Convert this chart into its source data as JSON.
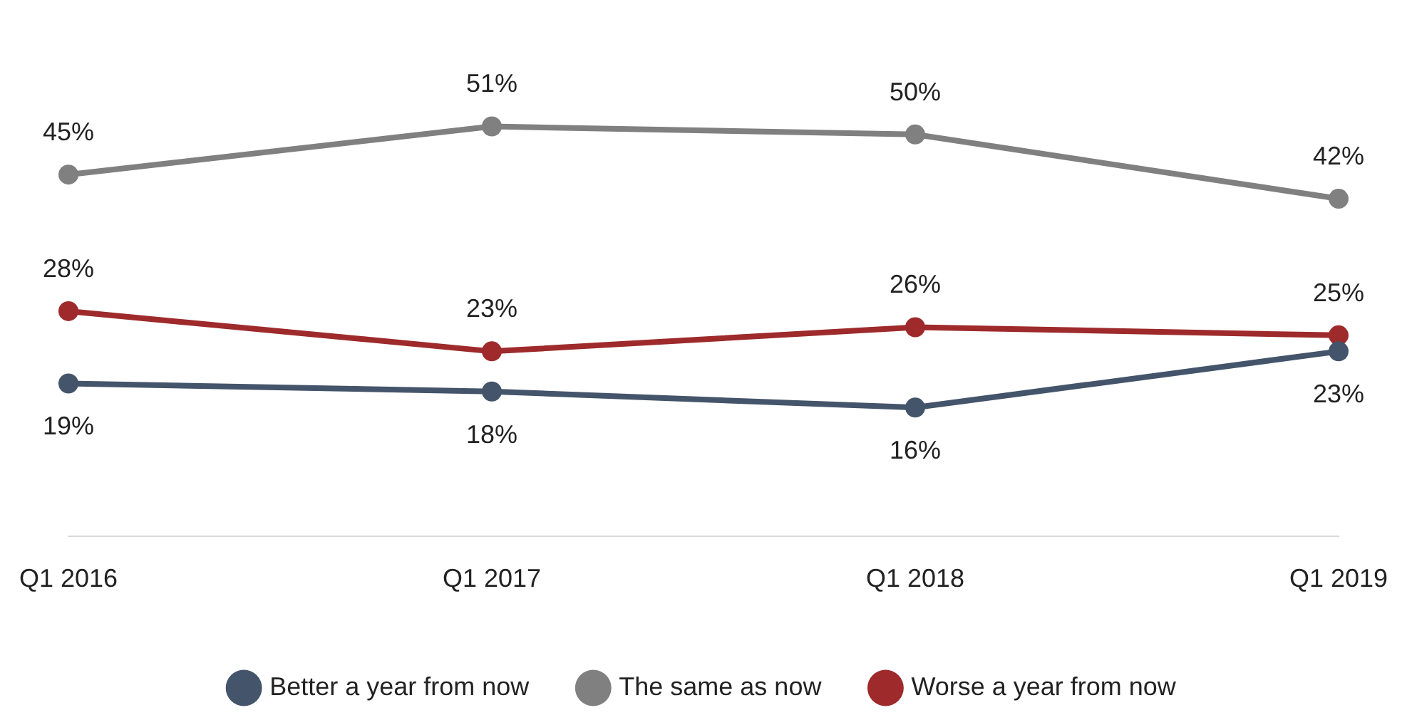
{
  "chart_data": {
    "type": "line",
    "categories": [
      "Q1 2016",
      "Q1 2017",
      "Q1 2018",
      "Q1 2019"
    ],
    "series": [
      {
        "name": "Better a year from now",
        "color": "#44546a",
        "values": [
          19,
          18,
          16,
          23
        ],
        "value_labels": [
          "19%",
          "18%",
          "16%",
          "23%"
        ]
      },
      {
        "name": "The same as now",
        "color": "#808080",
        "values": [
          45,
          51,
          50,
          42
        ],
        "value_labels": [
          "45%",
          "51%",
          "50%",
          "42%"
        ]
      },
      {
        "name": "Worse a year from now",
        "color": "#9e2a2b",
        "values": [
          28,
          23,
          26,
          25
        ],
        "value_labels": [
          "28%",
          "23%",
          "26%",
          "25%"
        ]
      }
    ],
    "legend": "bottom",
    "grid": false,
    "marker": "circle",
    "line_style": "solid",
    "tick_labels": "x"
  }
}
